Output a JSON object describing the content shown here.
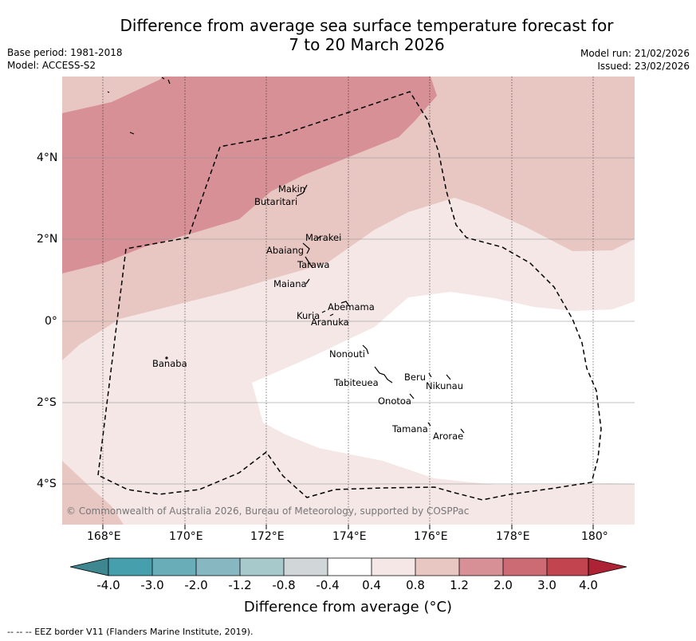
{
  "title_line1": "Difference from average sea surface temperature forecast for",
  "title_line2": "7 to 20 March 2026",
  "meta_left": {
    "base_period": "Base period: 1981-2018",
    "model": "Model: ACCESS-S2"
  },
  "meta_right": {
    "model_run": "Model run: 21/02/2026",
    "issued": "Issued: 23/02/2026"
  },
  "lat_labels": [
    "4°N",
    "2°N",
    "0°",
    "2°S",
    "4°S"
  ],
  "lon_labels": [
    "168°E",
    "170°E",
    "172°E",
    "174°E",
    "176°E",
    "178°E",
    "180°"
  ],
  "places": {
    "makin": "Makin",
    "butaritari": "Butaritari",
    "marakei": "Marakei",
    "abaiang": "Abaiang",
    "tarawa": "Tarawa",
    "maiana": "Maiana",
    "abemama": "Abemama",
    "kuria": "Kuria",
    "aranuka": "Aranuka",
    "banaba": "Banaba",
    "nonouti": "Nonouti",
    "tabiteuea": "Tabiteuea",
    "beru": "Beru",
    "nikunau": "Nikunau",
    "onotoa": "Onotoa",
    "tamana": "Tamana",
    "arorae": "Arorae"
  },
  "copyright": "© Commonwealth of Australia 2026, Bureau of Meteorology, supported by COSPPac",
  "colorbar": {
    "labels": [
      "-4.0",
      "-3.0",
      "-2.0",
      "-1.2",
      "-0.8",
      "-0.4",
      "0.4",
      "0.8",
      "1.2",
      "2.0",
      "3.0",
      "4.0"
    ],
    "colors": {
      "under": "#3e8690",
      "c1": "#459fad",
      "c2": "#69adb9",
      "c3": "#87b7c1",
      "c4": "#a8c9cc",
      "c5": "#d1d6d8",
      "c6": "#ffffff",
      "c7": "#f4e7e6",
      "c8": "#e8c7c3",
      "c9": "#d79096",
      "c10": "#cd6b74",
      "c11": "#c2444f",
      "over": "#ad2235"
    },
    "title": "Difference from average (°C)"
  },
  "footnote": "--  --  -- EEZ border V11 (Flanders Marine Institute, 2019)."
}
